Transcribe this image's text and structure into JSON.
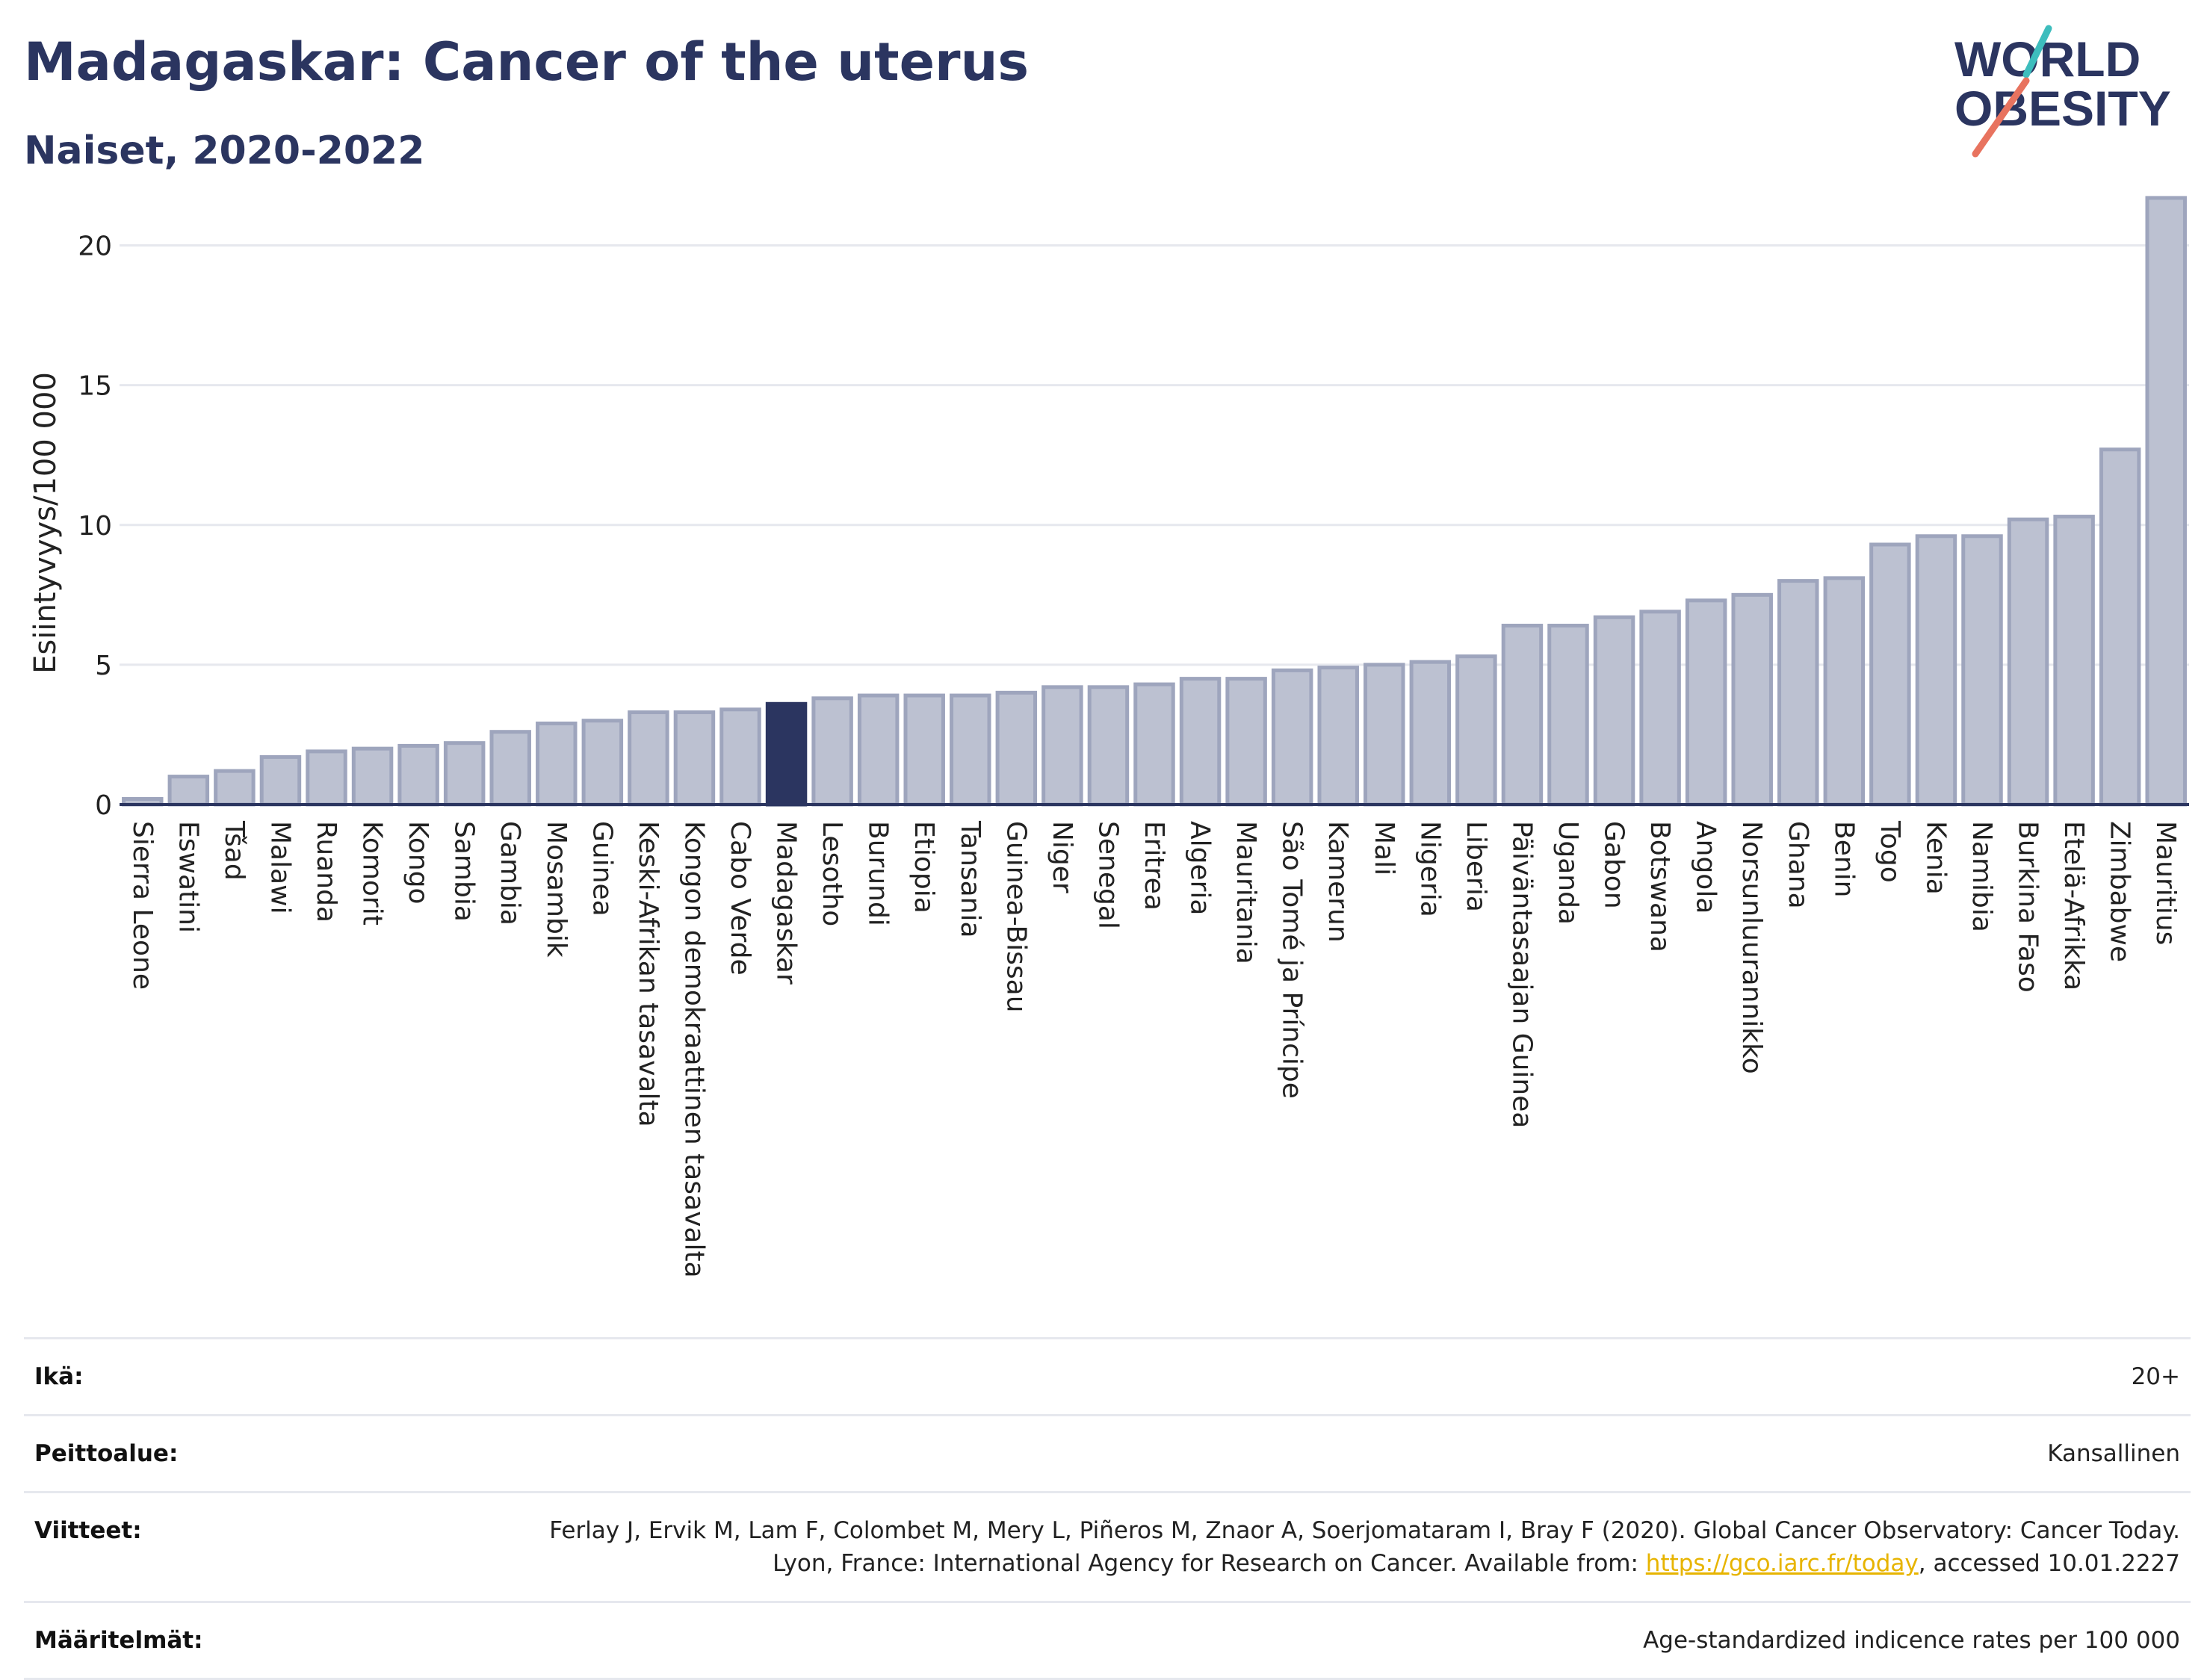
{
  "header": {
    "title": "Madagaskar: Cancer of the uterus",
    "subtitle": "Naiset, 2020-2022"
  },
  "logo": {
    "line1": "WORLD",
    "line2": "OBESITY",
    "colors": {
      "text": "#2b3560",
      "slash_teal": "#3dbdbd",
      "slash_red": "#e8735f"
    }
  },
  "colors": {
    "bar_fill": "#bcc1d1",
    "bar_stroke": "#9ea5bd",
    "highlight_fill": "#2b3560",
    "grid": "#e6e8ee",
    "axis": "#2b3560"
  },
  "chart_data": {
    "type": "bar",
    "ylabel": "Esiintyvyys/100 000",
    "ylim": [
      0,
      22.5
    ],
    "yticks": [
      0,
      5,
      10,
      15,
      20
    ],
    "grid": true,
    "highlight": "Madagaskar",
    "categories": [
      "Sierra Leone",
      "Eswatini",
      "Tšad",
      "Malawi",
      "Ruanda",
      "Komorit",
      "Kongo",
      "Sambia",
      "Gambia",
      "Mosambik",
      "Guinea",
      "Keski-Afrikan tasavalta",
      "Kongon demokraattinen tasavalta",
      "Cabo Verde",
      "Madagaskar",
      "Lesotho",
      "Burundi",
      "Etiopia",
      "Tansania",
      "Guinea-Bissau",
      "Niger",
      "Senegal",
      "Eritrea",
      "Algeria",
      "Mauritania",
      "São Tomé ja Príncipe",
      "Kamerun",
      "Mali",
      "Nigeria",
      "Liberia",
      "Päiväntasaajan Guinea",
      "Uganda",
      "Gabon",
      "Botswana",
      "Angola",
      "Norsunluurannikko",
      "Ghana",
      "Benin",
      "Togo",
      "Kenia",
      "Namibia",
      "Burkina Faso",
      "Etelä-Afrikka",
      "Zimbabwe",
      "Mauritius"
    ],
    "values": [
      0.2,
      1.0,
      1.2,
      1.7,
      1.9,
      2.0,
      2.1,
      2.2,
      2.6,
      2.9,
      3.0,
      3.3,
      3.3,
      3.4,
      3.6,
      3.8,
      3.9,
      3.9,
      3.9,
      4.0,
      4.2,
      4.2,
      4.3,
      4.5,
      4.5,
      4.8,
      4.9,
      5.0,
      5.1,
      5.3,
      6.4,
      6.4,
      6.7,
      6.9,
      7.3,
      7.5,
      8.0,
      8.1,
      9.3,
      9.6,
      9.6,
      10.2,
      10.3,
      12.7,
      21.7
    ]
  },
  "info": {
    "rows": [
      {
        "label": "Ikä:",
        "value": "20+"
      },
      {
        "label": "Peittoalue:",
        "value": "Kansallinen"
      },
      {
        "label": "Viitteet:",
        "value_before_link": "Ferlay J, Ervik M, Lam F, Colombet M, Mery L, Piñeros M, Znaor A, Soerjomataram I, Bray F (2020). Global Cancer Observatory: Cancer Today. Lyon, France: International Agency for Research on Cancer. Available from: ",
        "link": "https://gco.iarc.fr/today",
        "value_after_link": ", accessed 10.01.2227"
      },
      {
        "label": "Määritelmät:",
        "value": "Age-standardized indicence rates per 100 000"
      }
    ]
  }
}
